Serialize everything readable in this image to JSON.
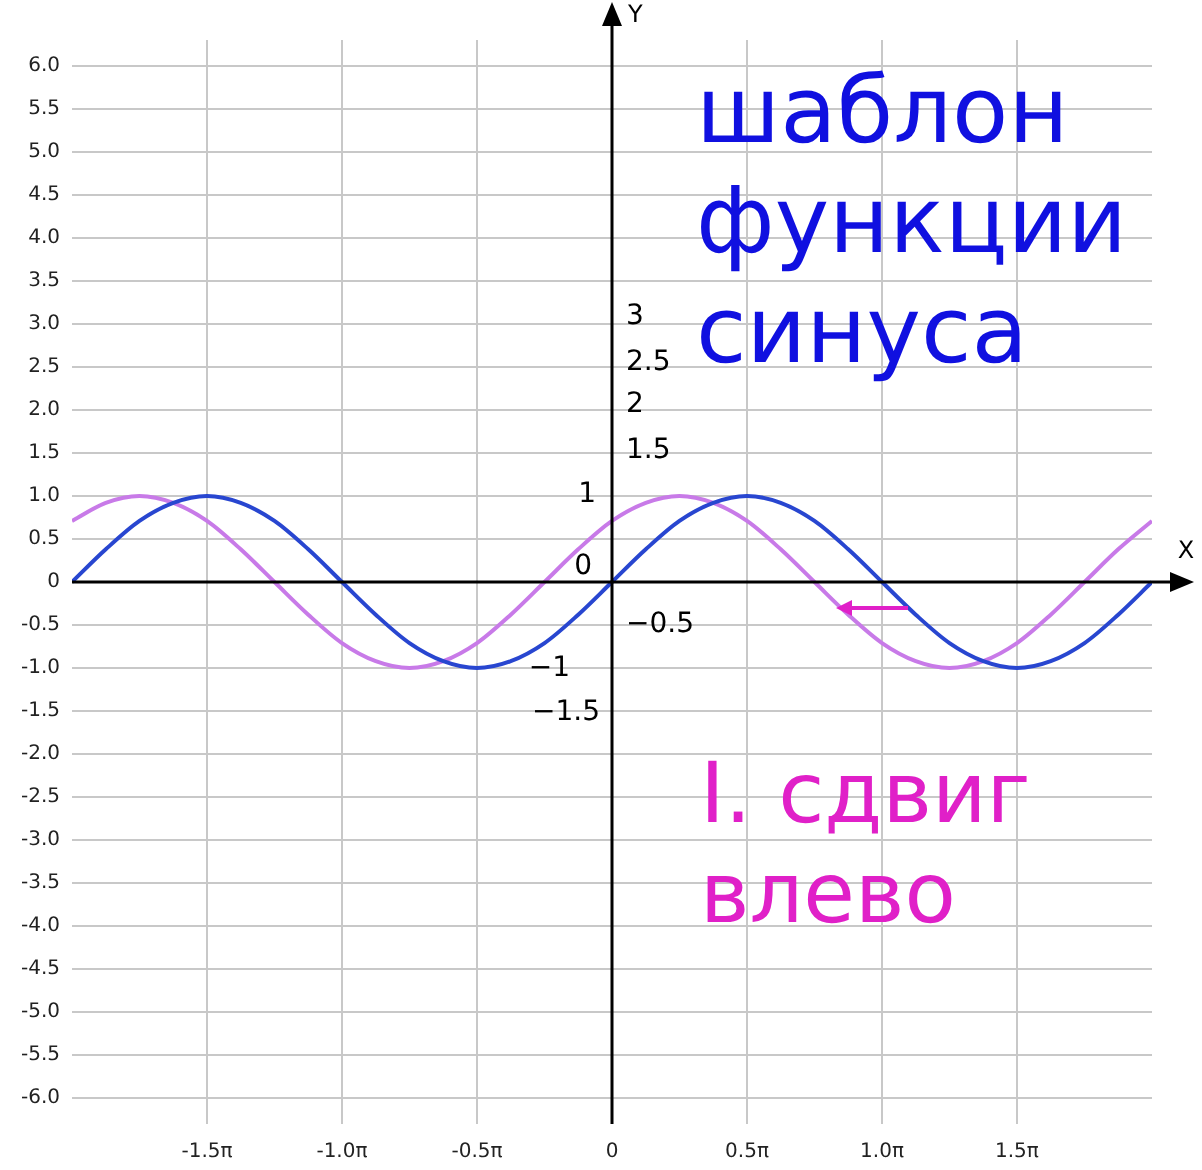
{
  "chart_data": {
    "type": "line",
    "title": "шаблон функции синуса",
    "xlabel": "X",
    "ylabel": "Y",
    "x": [
      -6.283,
      -5.89,
      -5.498,
      -5.105,
      -4.712,
      -4.32,
      -3.927,
      -3.534,
      -3.142,
      -2.749,
      -2.356,
      -1.963,
      -1.571,
      -1.178,
      -0.785,
      -0.393,
      0,
      0.393,
      0.785,
      1.178,
      1.571,
      1.963,
      2.356,
      2.749,
      3.142,
      3.534,
      3.927,
      4.32,
      4.712,
      5.105,
      5.498,
      5.89,
      6.283
    ],
    "series": [
      {
        "color": "#2846d0",
        "values": [
          0,
          0.38,
          0.71,
          0.92,
          1,
          0.92,
          0.71,
          0.38,
          0,
          -0.38,
          -0.71,
          -0.92,
          -1,
          -0.92,
          -0.71,
          -0.38,
          0,
          0.38,
          0.71,
          0.92,
          1,
          0.92,
          0.71,
          0.38,
          0,
          -0.38,
          -0.71,
          -0.92,
          -1,
          -0.92,
          -0.71,
          -0.38,
          0
        ]
      },
      {
        "color": "#c87ae8",
        "values": [
          0.71,
          0.92,
          1,
          0.92,
          0.71,
          0.38,
          0,
          -0.38,
          -0.71,
          -0.92,
          -1,
          -0.92,
          -0.71,
          -0.38,
          0,
          0.38,
          0.71,
          0.92,
          1,
          0.92,
          0.71,
          0.38,
          0,
          -0.38,
          -0.71,
          -0.92,
          -1,
          -0.92,
          -0.71,
          -0.38,
          0,
          0.38,
          0.71
        ]
      }
    ],
    "xlim": [
      -6.283,
      6.283
    ],
    "xticks": [
      {
        "value": -4.712,
        "label": "-1.5π"
      },
      {
        "value": -3.142,
        "label": "-1.0π"
      },
      {
        "value": -1.571,
        "label": "-0.5π"
      },
      0,
      {
        "value": 1.571,
        "label": "0.5π"
      },
      {
        "value": 3.142,
        "label": "1.0π"
      },
      {
        "value": 4.712,
        "label": "1.5π"
      }
    ],
    "ylim": [
      -6.3,
      6.3
    ],
    "yticks": [
      {
        "value": -6,
        "label": "-6.0"
      },
      -5.5,
      {
        "value": -5,
        "label": "-5.0"
      },
      -4.5,
      {
        "value": -4,
        "label": "-4.0"
      },
      -3.5,
      {
        "value": -3,
        "label": "-3.0"
      },
      -2.5,
      {
        "value": -2,
        "label": "-2.0"
      },
      -1.5,
      {
        "value": -1,
        "label": "-1.0"
      },
      -0.5,
      0,
      0.5,
      {
        "value": 1,
        "label": "1.0"
      },
      1.5,
      {
        "value": 2,
        "label": "2.0"
      },
      2.5,
      {
        "value": 3,
        "label": "3.0"
      },
      3.5,
      {
        "value": 4,
        "label": "4.0"
      },
      4.5,
      {
        "value": 5,
        "label": "5.0"
      },
      5.5,
      {
        "value": 6,
        "label": "6.0"
      }
    ],
    "grid": true,
    "legend": false,
    "marker": "none",
    "line_style": "solid",
    "annotations": [
      "I. сдвиг влево",
      "3",
      "2.5",
      "2",
      "1.5",
      "1",
      "0",
      "−0.5",
      "−1",
      "−1.5"
    ]
  }
}
